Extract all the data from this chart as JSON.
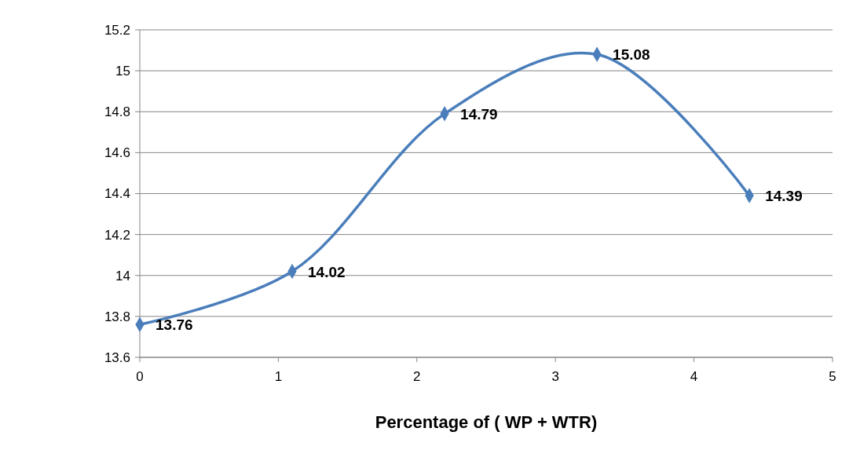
{
  "chart_data": {
    "type": "line",
    "xlabel": "Percentage of ( WP + WTR)",
    "x": [
      0,
      1.1,
      2.2,
      3.3,
      4.4
    ],
    "series": [
      {
        "color": "#4a7ebb",
        "values": [
          13.76,
          14.02,
          14.79,
          15.08,
          14.39
        ]
      }
    ],
    "xlim": [
      0,
      5
    ],
    "xticks": [
      0,
      1,
      2,
      3,
      4,
      5
    ],
    "ylim": [
      13.6,
      15.2
    ],
    "yticks": [
      13.6,
      13.8,
      14,
      14.2,
      14.4,
      14.6,
      14.8,
      15,
      15.2
    ],
    "grid": "y",
    "marker": "diamond",
    "line_style": "solid",
    "data_labels": true
  }
}
